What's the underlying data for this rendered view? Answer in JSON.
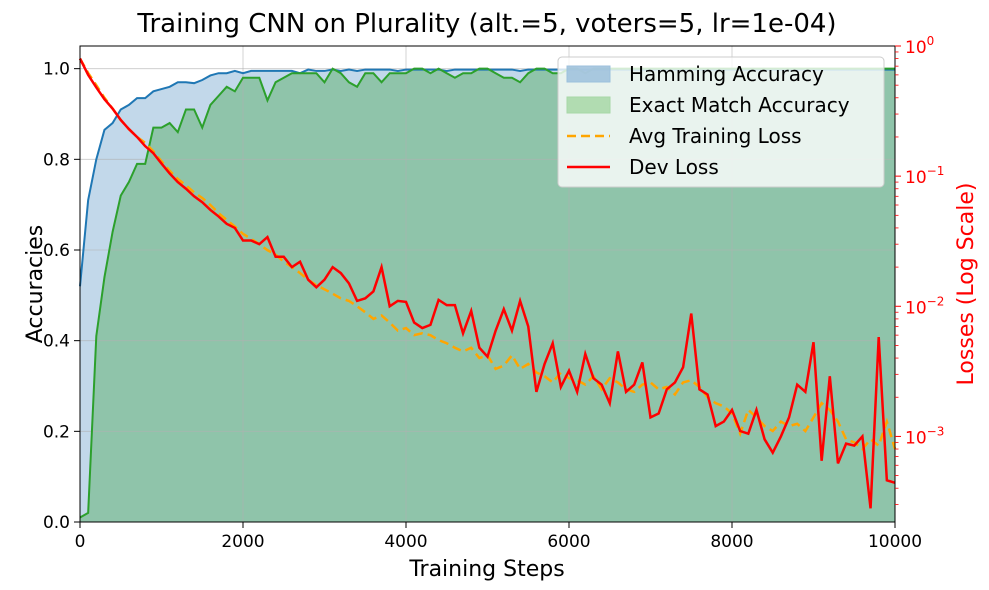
{
  "chart_data": {
    "type": "area",
    "title": "Training CNN on Plurality (alt.=5, voters=5, lr=1e-04)",
    "xlabel": "Training Steps",
    "ylabel": "Accuracies",
    "ylabel_right": "Losses (Log Scale)",
    "xlim": [
      0,
      10000
    ],
    "ylim": [
      0,
      1.05
    ],
    "ylim_right_log": [
      0.00022,
      1.0
    ],
    "x_ticks": [
      0,
      2000,
      4000,
      6000,
      8000,
      10000
    ],
    "x_tick_labels": [
      "0",
      "2000",
      "4000",
      "6000",
      "8000",
      "10000"
    ],
    "y_ticks": [
      0.0,
      0.2,
      0.4,
      0.6,
      0.8,
      1.0
    ],
    "y_tick_labels": [
      "0.0",
      "0.2",
      "0.4",
      "0.6",
      "0.8",
      "1.0"
    ],
    "y_right_ticks": [
      0.001,
      0.01,
      0.1,
      1.0
    ],
    "y_right_tick_labels": [
      {
        "base": "10",
        "exp": "−3"
      },
      {
        "base": "10",
        "exp": "−2"
      },
      {
        "base": "10",
        "exp": "−1"
      },
      {
        "base": "10",
        "exp": "0"
      }
    ],
    "grid": true,
    "legend_position": "top-right",
    "legend": [
      {
        "label": "Hamming Accuracy",
        "kind": "fill",
        "color": "#9cc0dc"
      },
      {
        "label": "Exact Match Accuracy",
        "kind": "fill",
        "color": "#a7d7a6"
      },
      {
        "label": "Avg Training Loss",
        "kind": "dashed",
        "color": "#ffa500"
      },
      {
        "label": "Dev Loss",
        "kind": "line",
        "color": "#ff0000"
      }
    ],
    "colors": {
      "hamming_line": "#1f77b4",
      "hamming_fill": "#c2d8ea",
      "exact_line": "#2ca02c",
      "exact_fill": "#8fc4aa",
      "train_loss": "#ffa500",
      "dev_loss": "#ff0000",
      "right_axis": "#ff0000"
    },
    "steps": [
      0,
      100,
      200,
      300,
      400,
      500,
      600,
      700,
      800,
      900,
      1000,
      1100,
      1200,
      1300,
      1400,
      1500,
      1600,
      1700,
      1800,
      1900,
      2000,
      2100,
      2200,
      2300,
      2400,
      2500,
      2600,
      2700,
      2800,
      2900,
      3000,
      3100,
      3200,
      3300,
      3400,
      3500,
      3600,
      3700,
      3800,
      3900,
      4000,
      4100,
      4200,
      4300,
      4400,
      4500,
      4600,
      4700,
      4800,
      4900,
      5000,
      5100,
      5200,
      5300,
      5400,
      5500,
      5600,
      5700,
      5800,
      5900,
      6000,
      6100,
      6200,
      6300,
      6400,
      6500,
      6600,
      6700,
      6800,
      6900,
      7000,
      7100,
      7200,
      7300,
      7400,
      7500,
      7600,
      7700,
      7800,
      7900,
      8000,
      8100,
      8200,
      8300,
      8400,
      8500,
      8600,
      8700,
      8800,
      8900,
      9000,
      9100,
      9200,
      9300,
      9400,
      9500,
      9600,
      9700,
      9800,
      9900,
      10000
    ],
    "series": [
      {
        "name": "Hamming Accuracy",
        "axis": "left",
        "values": [
          0.52,
          0.71,
          0.8,
          0.865,
          0.88,
          0.91,
          0.92,
          0.935,
          0.935,
          0.95,
          0.955,
          0.96,
          0.97,
          0.97,
          0.968,
          0.975,
          0.985,
          0.99,
          0.99,
          0.995,
          0.99,
          0.995,
          0.995,
          0.995,
          0.995,
          0.995,
          0.995,
          0.99,
          0.998,
          0.995,
          0.995,
          0.998,
          0.995,
          0.998,
          0.995,
          0.998,
          0.998,
          0.998,
          0.998,
          0.995,
          0.998,
          0.998,
          0.998,
          0.998,
          0.998,
          0.995,
          0.998,
          0.998,
          0.998,
          0.998,
          0.998,
          0.998,
          0.998,
          0.998,
          0.995,
          0.998,
          0.998,
          0.998,
          0.998,
          0.998,
          0.998,
          0.998,
          0.998,
          0.998,
          0.998,
          0.998,
          0.998,
          0.998,
          0.998,
          0.998,
          0.998,
          0.998,
          0.998,
          0.998,
          0.998,
          0.998,
          0.998,
          0.998,
          0.998,
          0.998,
          0.998,
          0.998,
          0.998,
          0.998,
          0.998,
          0.998,
          0.998,
          0.998,
          0.998,
          0.998,
          0.998,
          0.998,
          0.998,
          0.998,
          0.998,
          0.998,
          0.998,
          0.998,
          0.998,
          0.998,
          0.998
        ]
      },
      {
        "name": "Exact Match Accuracy",
        "axis": "left",
        "values": [
          0.01,
          0.02,
          0.41,
          0.54,
          0.64,
          0.72,
          0.75,
          0.79,
          0.79,
          0.87,
          0.87,
          0.88,
          0.86,
          0.91,
          0.91,
          0.87,
          0.92,
          0.94,
          0.96,
          0.95,
          0.98,
          0.98,
          0.98,
          0.93,
          0.97,
          0.98,
          0.99,
          0.99,
          0.99,
          0.99,
          0.97,
          1.0,
          0.99,
          0.97,
          0.96,
          0.99,
          0.99,
          0.97,
          0.99,
          0.99,
          0.99,
          1.0,
          1.0,
          0.99,
          1.0,
          0.99,
          0.98,
          0.99,
          0.99,
          1.0,
          1.0,
          0.99,
          0.98,
          0.98,
          0.97,
          0.99,
          1.0,
          1.0,
          0.99,
          0.99,
          1.0,
          1.0,
          0.99,
          1.0,
          1.0,
          1.0,
          1.0,
          1.0,
          1.0,
          1.0,
          1.0,
          1.0,
          1.0,
          1.0,
          1.0,
          1.0,
          1.0,
          1.0,
          1.0,
          1.0,
          1.0,
          1.0,
          1.0,
          1.0,
          1.0,
          1.0,
          1.0,
          1.0,
          1.0,
          1.0,
          1.0,
          1.0,
          1.0,
          1.0,
          1.0,
          1.0,
          1.0,
          1.0,
          1.0,
          1.0,
          1.0
        ]
      },
      {
        "name": "Avg Training Loss",
        "axis": "right",
        "values": [
          0.8,
          0.62,
          0.5,
          0.4,
          0.33,
          0.27,
          0.23,
          0.2,
          0.18,
          0.155,
          0.13,
          0.11,
          0.095,
          0.085,
          0.075,
          0.068,
          0.06,
          0.052,
          0.046,
          0.041,
          0.036,
          0.033,
          0.03,
          0.027,
          0.025,
          0.022,
          0.02,
          0.018,
          0.016,
          0.0145,
          0.0135,
          0.0125,
          0.0115,
          0.011,
          0.01,
          0.009,
          0.008,
          0.0085,
          0.0075,
          0.0065,
          0.0068,
          0.006,
          0.0062,
          0.006,
          0.0055,
          0.0052,
          0.0048,
          0.0045,
          0.0048,
          0.004,
          0.0042,
          0.0033,
          0.0035,
          0.0042,
          0.0033,
          0.0036,
          0.0031,
          0.0029,
          0.0026,
          0.0031,
          0.0028,
          0.0027,
          0.0025,
          0.0029,
          0.0023,
          0.0028,
          0.0026,
          0.0023,
          0.0022,
          0.0025,
          0.0026,
          0.0023,
          0.0024,
          0.0021,
          0.0026,
          0.0027,
          0.0024,
          0.002,
          0.0018,
          0.0017,
          0.0015,
          0.00105,
          0.0016,
          0.0014,
          0.0012,
          0.0011,
          0.0013,
          0.0012,
          0.00125,
          0.0011,
          0.0014,
          0.0018,
          0.0016,
          0.0013,
          0.00095,
          0.0009,
          0.0008,
          0.00095,
          0.00085,
          0.0013,
          0.0008
        ]
      },
      {
        "name": "Dev Loss",
        "axis": "right",
        "values": [
          0.8,
          0.6,
          0.48,
          0.39,
          0.33,
          0.27,
          0.23,
          0.2,
          0.17,
          0.15,
          0.125,
          0.105,
          0.09,
          0.08,
          0.07,
          0.063,
          0.055,
          0.049,
          0.043,
          0.04,
          0.032,
          0.032,
          0.03,
          0.034,
          0.024,
          0.024,
          0.02,
          0.022,
          0.016,
          0.014,
          0.016,
          0.02,
          0.018,
          0.015,
          0.011,
          0.0115,
          0.013,
          0.02,
          0.01,
          0.011,
          0.0108,
          0.0075,
          0.0068,
          0.0072,
          0.0112,
          0.0102,
          0.0102,
          0.0062,
          0.0092,
          0.0048,
          0.0041,
          0.0065,
          0.0095,
          0.0065,
          0.011,
          0.007,
          0.0022,
          0.0036,
          0.0052,
          0.0024,
          0.0032,
          0.0022,
          0.0043,
          0.0028,
          0.0025,
          0.0018,
          0.0045,
          0.0022,
          0.0025,
          0.0037,
          0.0014,
          0.0015,
          0.0023,
          0.0026,
          0.0034,
          0.0088,
          0.0023,
          0.0021,
          0.0012,
          0.0013,
          0.0016,
          0.0011,
          0.00105,
          0.0016,
          0.00095,
          0.00075,
          0.001,
          0.0014,
          0.0025,
          0.0022,
          0.0053,
          0.00065,
          0.0029,
          0.00062,
          0.00088,
          0.00085,
          0.001,
          0.00028,
          0.0058,
          0.00046,
          0.00044
        ]
      }
    ]
  }
}
